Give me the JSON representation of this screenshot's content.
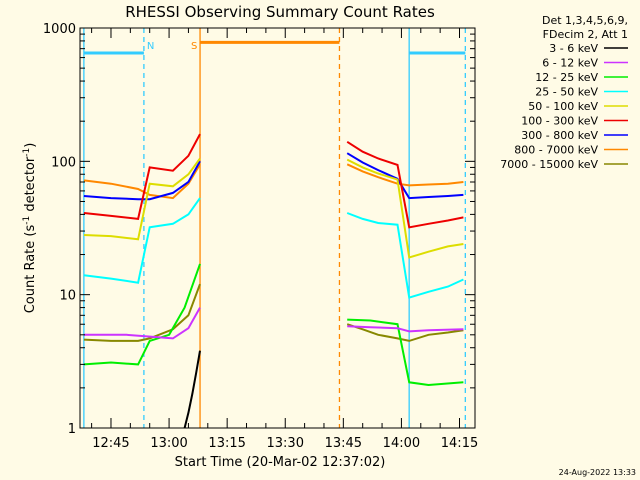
{
  "chart_data": {
    "type": "line",
    "title": "RHESSI Observing Summary Count Rates",
    "xlabel": "Start Time (20-Mar-02 12:37:02)",
    "ylabel": "Count Rate (s",
    "ylabel_sup": "-1",
    "ylabel_mid": " detector",
    "ylabel_sup2": "-1",
    "ylabel_end": ")",
    "y_scale": "log",
    "ylim": [
      1,
      1000
    ],
    "xlim": [
      "12:37",
      "14:19"
    ],
    "y_ticks": [
      {
        "value": 1,
        "label": "1"
      },
      {
        "value": 10,
        "label": "10"
      },
      {
        "value": 100,
        "label": "100"
      },
      {
        "value": 1000,
        "label": "1000"
      }
    ],
    "x_ticks": [
      {
        "minute": 45,
        "label": "12:45"
      },
      {
        "minute": 60,
        "label": "13:00"
      },
      {
        "minute": 75,
        "label": "13:15"
      },
      {
        "minute": 90,
        "label": "13:30"
      },
      {
        "minute": 105,
        "label": "13:45"
      },
      {
        "minute": 120,
        "label": "14:00"
      },
      {
        "minute": 135,
        "label": "14:15"
      }
    ],
    "legend_header": [
      "Det 1,3,4,5,6,9,",
      "FDecim 2, Att 1"
    ],
    "legend_position": "right",
    "series": [
      {
        "name": "3 - 6 keV",
        "color": "#000000",
        "values": [
          [
            64,
            1.0
          ],
          [
            65,
            1.3
          ],
          [
            66,
            1.8
          ],
          [
            67,
            2.6
          ],
          [
            68,
            3.8
          ]
        ]
      },
      {
        "name": "6 - 12 keV",
        "color": "#cc33ff",
        "values": [
          [
            38,
            5.0
          ],
          [
            49,
            5.0
          ],
          [
            53,
            4.9
          ],
          [
            61,
            4.7
          ],
          [
            65,
            5.6
          ],
          [
            68,
            8.0
          ],
          [
            106,
            5.8
          ],
          [
            112,
            5.7
          ],
          [
            119,
            5.6
          ],
          [
            122,
            5.3
          ],
          [
            127,
            5.4
          ],
          [
            136,
            5.5
          ]
        ]
      },
      {
        "name": "12 - 25 keV",
        "color": "#00ee00",
        "values": [
          [
            38,
            3.0
          ],
          [
            45,
            3.1
          ],
          [
            52,
            3.0
          ],
          [
            55,
            4.5
          ],
          [
            60,
            5.0
          ],
          [
            64,
            8.0
          ],
          [
            68,
            17.0
          ],
          [
            106,
            6.5
          ],
          [
            112,
            6.4
          ],
          [
            119,
            6.0
          ],
          [
            122,
            2.2
          ],
          [
            127,
            2.1
          ],
          [
            136,
            2.2
          ]
        ]
      },
      {
        "name": "25 - 50 keV",
        "color": "#00ffff",
        "values": [
          [
            38,
            14.0
          ],
          [
            45,
            13.2
          ],
          [
            52,
            12.3
          ],
          [
            55,
            32.0
          ],
          [
            61,
            34.0
          ],
          [
            65,
            40.0
          ],
          [
            68,
            53.0
          ],
          [
            106,
            41.0
          ],
          [
            110,
            37.0
          ],
          [
            114,
            34.5
          ],
          [
            119,
            33.5
          ],
          [
            122,
            9.5
          ],
          [
            127,
            10.5
          ],
          [
            132,
            11.5
          ],
          [
            136,
            13.0
          ]
        ]
      },
      {
        "name": "50 - 100 keV",
        "color": "#dddd00",
        "values": [
          [
            38,
            28.0
          ],
          [
            45,
            27.5
          ],
          [
            52,
            26.0
          ],
          [
            55,
            68.0
          ],
          [
            61,
            65.0
          ],
          [
            65,
            80.0
          ],
          [
            68,
            105.0
          ],
          [
            106,
            103.0
          ],
          [
            110,
            90.0
          ],
          [
            114,
            81.0
          ],
          [
            119,
            73.0
          ],
          [
            122,
            19.0
          ],
          [
            127,
            21.0
          ],
          [
            132,
            23.0
          ],
          [
            136,
            24.0
          ]
        ]
      },
      {
        "name": "100 - 300 keV",
        "color": "#ee0000",
        "values": [
          [
            38,
            41.0
          ],
          [
            45,
            39.0
          ],
          [
            52,
            37.0
          ],
          [
            55,
            90.0
          ],
          [
            61,
            85.0
          ],
          [
            65,
            110.0
          ],
          [
            68,
            160.0
          ],
          [
            106,
            140.0
          ],
          [
            110,
            118.0
          ],
          [
            114,
            105.0
          ],
          [
            119,
            94.0
          ],
          [
            122,
            32.0
          ],
          [
            127,
            34.0
          ],
          [
            132,
            36.0
          ],
          [
            136,
            38.0
          ]
        ]
      },
      {
        "name": "300 - 800 keV",
        "color": "#0000ff",
        "values": [
          [
            38,
            55.0
          ],
          [
            45,
            53.0
          ],
          [
            52,
            52.0
          ],
          [
            55,
            52.0
          ],
          [
            61,
            58.0
          ],
          [
            65,
            70.0
          ],
          [
            68,
            100.0
          ],
          [
            106,
            115.0
          ],
          [
            110,
            98.0
          ],
          [
            114,
            86.0
          ],
          [
            119,
            74.0
          ],
          [
            122,
            53.0
          ],
          [
            127,
            54.0
          ],
          [
            132,
            55.0
          ],
          [
            136,
            56.0
          ]
        ]
      },
      {
        "name": "800 - 7000 keV",
        "color": "#ff8800",
        "values": [
          [
            38,
            72.0
          ],
          [
            45,
            68.0
          ],
          [
            52,
            62.0
          ],
          [
            55,
            56.0
          ],
          [
            61,
            53.0
          ],
          [
            65,
            68.0
          ],
          [
            68,
            95.0
          ],
          [
            106,
            95.0
          ],
          [
            110,
            84.0
          ],
          [
            114,
            76.0
          ],
          [
            119,
            68.0
          ],
          [
            122,
            66.0
          ],
          [
            127,
            67.0
          ],
          [
            132,
            68.0
          ],
          [
            136,
            70.0
          ]
        ]
      },
      {
        "name": "7000 - 15000 keV",
        "color": "#888800",
        "values": [
          [
            38,
            4.6
          ],
          [
            45,
            4.5
          ],
          [
            52,
            4.5
          ],
          [
            55,
            4.7
          ],
          [
            61,
            5.5
          ],
          [
            65,
            7.0
          ],
          [
            68,
            12.0
          ],
          [
            106,
            6.0
          ],
          [
            110,
            5.5
          ],
          [
            114,
            5.0
          ],
          [
            119,
            4.7
          ],
          [
            122,
            4.5
          ],
          [
            127,
            5.0
          ],
          [
            132,
            5.2
          ],
          [
            136,
            5.4
          ]
        ]
      }
    ],
    "flags": [
      {
        "label": "N",
        "color": "#33ccff",
        "solid_minutes": [
          38,
          122
        ],
        "dashed_minutes": [
          53.5,
          136.5
        ],
        "segments": [
          [
            38,
            53.5
          ],
          [
            122,
            136.5
          ]
        ],
        "level": 650
      },
      {
        "label": "S",
        "color": "#ff8800",
        "solid_minutes": [
          68
        ],
        "dashed_minutes": [
          104
        ],
        "segments": [
          [
            68,
            104
          ]
        ],
        "level": 780
      }
    ]
  },
  "footer": {
    "generated": "24-Aug-2022 13:33"
  }
}
